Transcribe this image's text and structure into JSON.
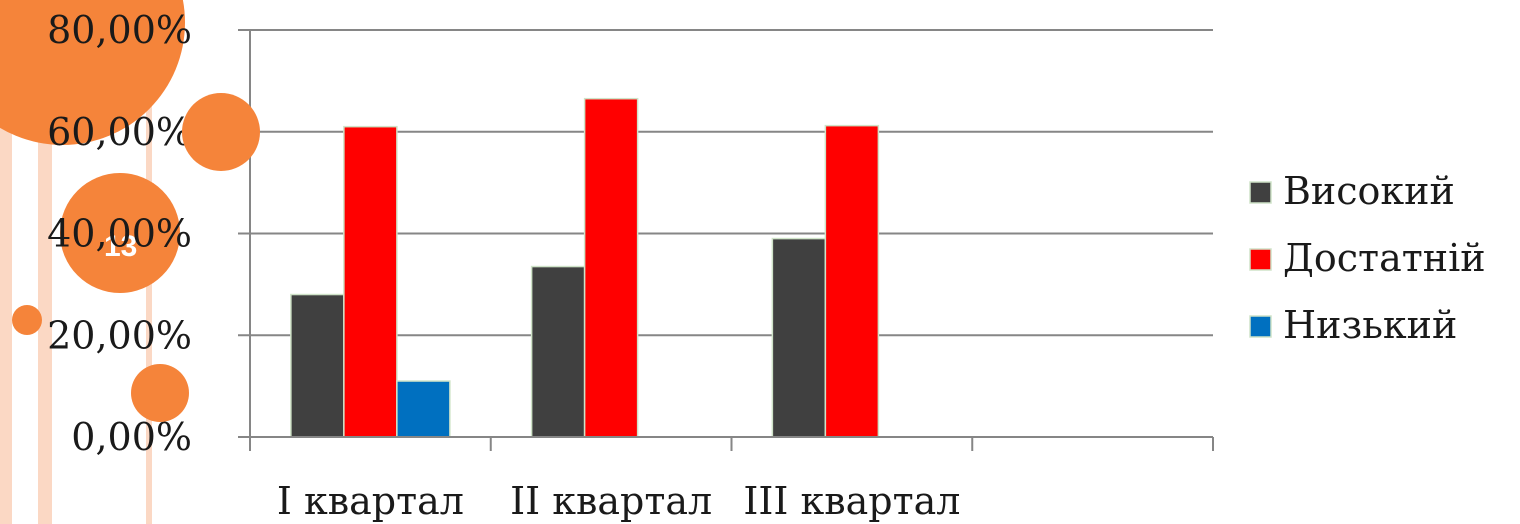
{
  "slide": {
    "number": "13",
    "accent_color": "#f5843a",
    "stripe_color": "#fbd8c4"
  },
  "chart_data": {
    "type": "bar",
    "title": "",
    "xlabel": "",
    "ylabel": "",
    "categories": [
      "I квартал",
      "II квартал",
      "III квартал",
      ""
    ],
    "series": [
      {
        "name": "Високий",
        "color": "#404040",
        "values": [
          0.28,
          0.335,
          0.39,
          null
        ]
      },
      {
        "name": "Достатній",
        "color": "#ff0000",
        "values": [
          0.61,
          0.665,
          0.612,
          null
        ]
      },
      {
        "name": "Низький",
        "color": "#0070c0",
        "values": [
          0.11,
          null,
          null,
          null
        ]
      }
    ],
    "ylim": [
      0,
      0.8
    ],
    "yticks": [
      {
        "value": 0.0,
        "label": "0,00%"
      },
      {
        "value": 0.2,
        "label": "20,00%"
      },
      {
        "value": 0.4,
        "label": "40,00%"
      },
      {
        "value": 0.6,
        "label": "60,00%"
      },
      {
        "value": 0.8,
        "label": "80,00%"
      }
    ],
    "grid": true,
    "legend_position": "right"
  }
}
